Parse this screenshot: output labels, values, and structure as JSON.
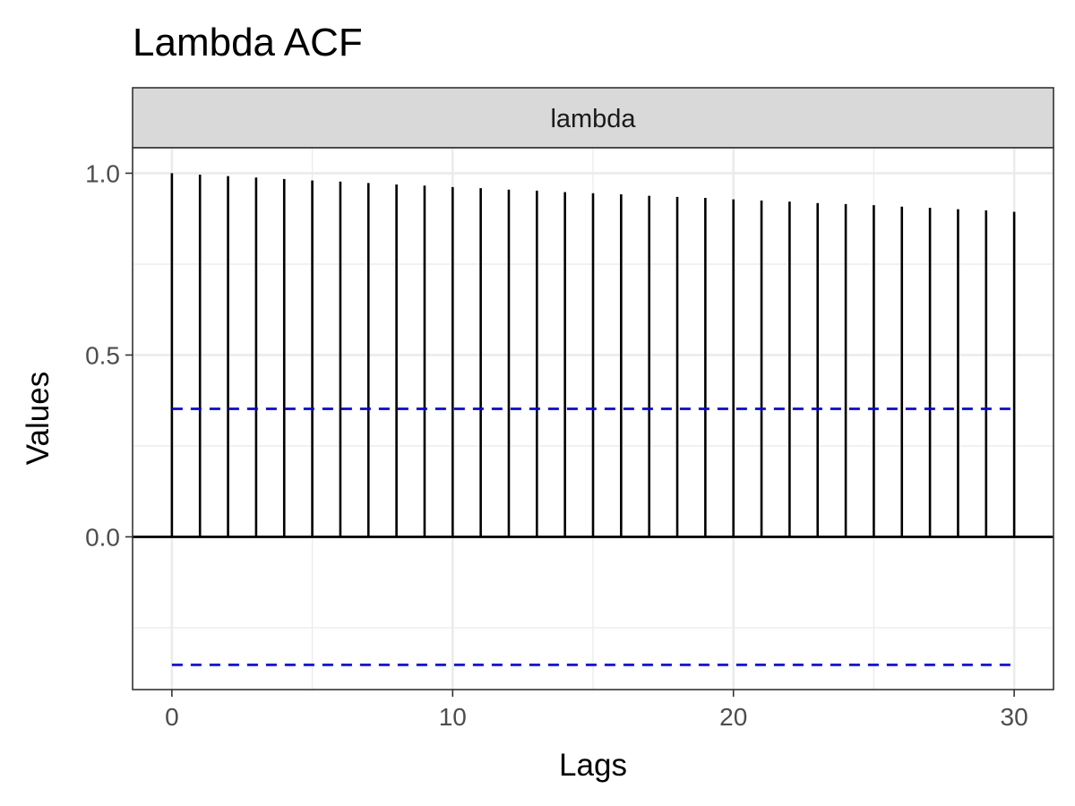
{
  "chart_data": {
    "type": "bar",
    "title": "Lambda ACF",
    "facet": "lambda",
    "xlabel": "Lags",
    "ylabel": "Values",
    "xlim": [
      -1.4,
      31.4
    ],
    "ylim": [
      -0.42,
      1.07
    ],
    "xticks": [
      0,
      10,
      20,
      30
    ],
    "xtick_labels": [
      "0",
      "10",
      "20",
      "30"
    ],
    "yticks": [
      0.0,
      0.5,
      1.0
    ],
    "ytick_labels": [
      "0.0",
      "0.5",
      "1.0"
    ],
    "grid": true,
    "confidence_bounds": [
      0.352,
      -0.352
    ],
    "confidence_color": "#0000ff",
    "bar_color": "#000000",
    "lags": [
      0,
      1,
      2,
      3,
      4,
      5,
      6,
      7,
      8,
      9,
      10,
      11,
      12,
      13,
      14,
      15,
      16,
      17,
      18,
      19,
      20,
      21,
      22,
      23,
      24,
      25,
      26,
      27,
      28,
      29,
      30
    ],
    "values": [
      1.0,
      0.996,
      0.992,
      0.988,
      0.984,
      0.98,
      0.977,
      0.973,
      0.969,
      0.966,
      0.962,
      0.959,
      0.955,
      0.952,
      0.948,
      0.945,
      0.942,
      0.938,
      0.935,
      0.932,
      0.928,
      0.925,
      0.922,
      0.918,
      0.915,
      0.912,
      0.908,
      0.905,
      0.901,
      0.898,
      0.894
    ]
  }
}
